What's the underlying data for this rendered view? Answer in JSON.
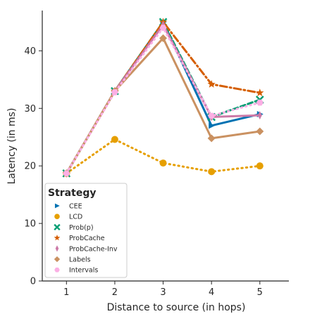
{
  "chart_data": {
    "type": "line",
    "xlabel": "Distance to source (in hops)",
    "ylabel": "Latency (in ms)",
    "x": [
      1,
      2,
      3,
      4,
      5
    ],
    "xlim": [
      0.5,
      5.6
    ],
    "ylim": [
      0,
      47
    ],
    "xticks": [
      "1",
      "2",
      "3",
      "4",
      "5"
    ],
    "yticks": [
      "0",
      "10",
      "20",
      "30",
      "40"
    ],
    "grid": false,
    "legend": {
      "title": "Strategy",
      "placement": "lower-left"
    },
    "series": [
      {
        "name": "CEE",
        "values": [
          18.7,
          33.0,
          45.0,
          27.0,
          29.0
        ],
        "color": "#0072b2",
        "marker": "triangle-right",
        "dash": "solid"
      },
      {
        "name": "LCD",
        "values": [
          18.7,
          24.6,
          20.5,
          19.0,
          20.0
        ],
        "color": "#e69f00",
        "marker": "circle",
        "dash": "dotted"
      },
      {
        "name": "Prob(p)",
        "values": [
          18.7,
          33.0,
          45.0,
          28.5,
          31.5
        ],
        "color": "#009e73",
        "marker": "x",
        "dash": "dashed"
      },
      {
        "name": "ProbCache",
        "values": [
          18.7,
          33.0,
          45.0,
          34.2,
          32.7
        ],
        "color": "#d55e00",
        "marker": "star",
        "dash": "dashdot"
      },
      {
        "name": "ProbCache-Inv",
        "values": [
          18.7,
          33.0,
          44.5,
          28.5,
          28.8
        ],
        "color": "#cc79a7",
        "marker": "thin-diamond",
        "dash": "solid"
      },
      {
        "name": "Labels",
        "values": [
          18.7,
          33.0,
          42.2,
          24.8,
          26.0
        ],
        "color": "#ca9161",
        "marker": "diamond",
        "dash": "solid"
      },
      {
        "name": "Intervals",
        "values": [
          18.7,
          32.8,
          44.0,
          28.7,
          31.0
        ],
        "color": "#fbafe4",
        "marker": "hexagon",
        "dash": "dotted"
      }
    ]
  }
}
